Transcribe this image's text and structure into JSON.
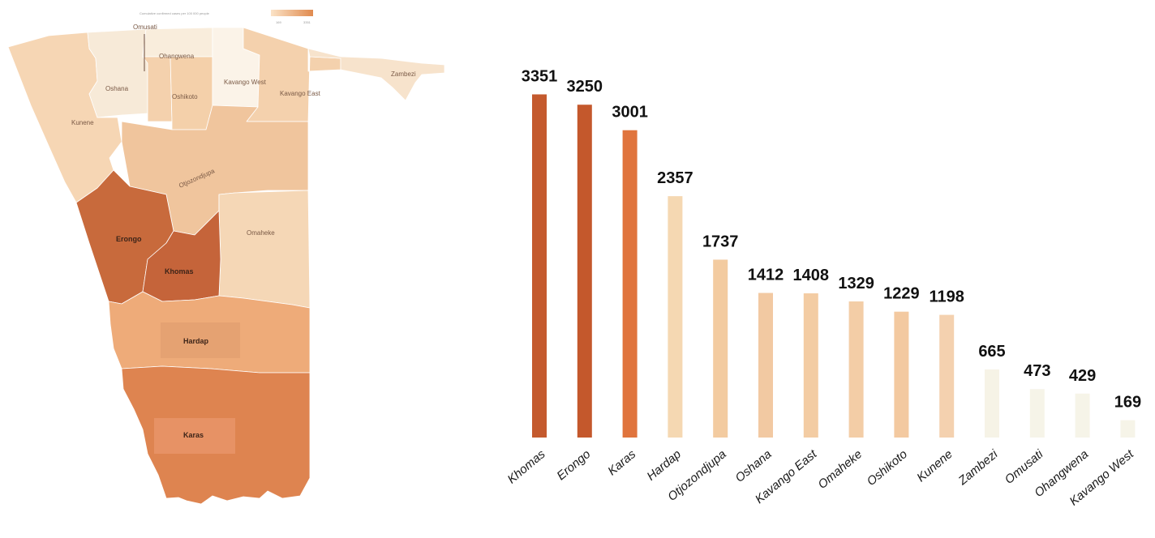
{
  "map": {
    "legend": {
      "title": "Cumulative confirmed cases per 100 000 people",
      "min_label": "169",
      "max_label": "3351",
      "gradient_colors": [
        "#fbe3c7",
        "#e08a4e"
      ]
    },
    "regions": [
      {
        "name": "Kunene",
        "color": "#f6d6b4"
      },
      {
        "name": "Omusati",
        "color": "#f7ead8"
      },
      {
        "name": "Oshana",
        "color": "#f4d1ad"
      },
      {
        "name": "Ohangwena",
        "color": "#f9eddc"
      },
      {
        "name": "Oshikoto",
        "color": "#f4d0aa"
      },
      {
        "name": "Kavango West",
        "color": "#fbf3e8"
      },
      {
        "name": "Kavango East",
        "color": "#f4d1ad"
      },
      {
        "name": "Zambezi",
        "color": "#f7e3cc"
      },
      {
        "name": "Otjozondjupa",
        "color": "#f0c59d"
      },
      {
        "name": "Omaheke",
        "color": "#f5d7b6"
      },
      {
        "name": "Erongo",
        "color": "#c86a3c"
      },
      {
        "name": "Khomas",
        "color": "#c5643a"
      },
      {
        "name": "Hardap",
        "color": "#eeab79"
      },
      {
        "name": "Karas",
        "color": "#de8450"
      }
    ]
  },
  "chart_data": {
    "type": "bar",
    "categories": [
      "Khomas",
      "Erongo",
      "Karas",
      "Hardap",
      "Otjozondjupa",
      "Oshana",
      "Kavango East",
      "Omaheke",
      "Oshikoto",
      "Kunene",
      "Zambezi",
      "Omusati",
      "Ohangwena",
      "Kavango West"
    ],
    "values": [
      3351,
      3250,
      3001,
      2357,
      1737,
      1412,
      1408,
      1329,
      1229,
      1198,
      665,
      473,
      429,
      169
    ],
    "colors": [
      "#c45a2e",
      "#c4582c",
      "#e0743d",
      "#f5d8b2",
      "#f3cba0",
      "#f2c9a2",
      "#f3cca3",
      "#f3cda6",
      "#f3c9a0",
      "#f4d1af",
      "#f6f3e6",
      "#f6f4e8",
      "#f6f4e8",
      "#f6f4e8"
    ],
    "title": "",
    "xlabel": "",
    "ylabel": "",
    "ylim": [
      0,
      3600
    ],
    "grid": false,
    "legend": "none"
  }
}
